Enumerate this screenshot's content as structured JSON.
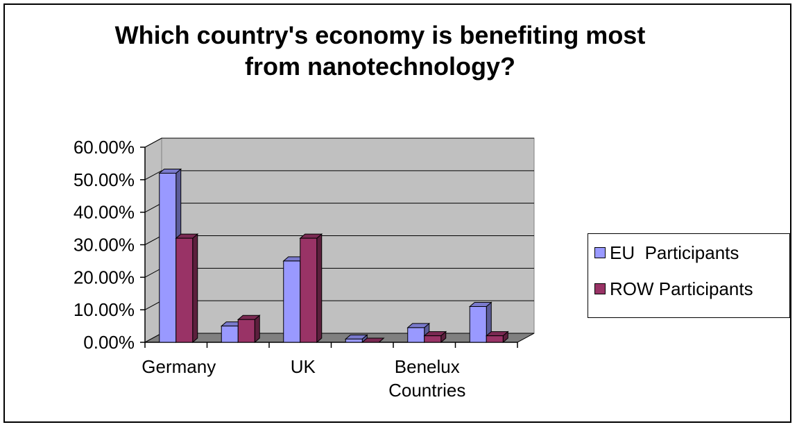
{
  "chart_data": {
    "type": "bar",
    "title": "Which country's economy is benefiting most from nanotechnology?",
    "title_lines": [
      "Which country's economy is benefiting most",
      "from nanotechnology?"
    ],
    "categories": [
      "Germany",
      "",
      "UK",
      "",
      "Benelux Countries",
      ""
    ],
    "category_label_lines": [
      [
        "Germany"
      ],
      [],
      [
        "UK"
      ],
      [],
      [
        "Benelux",
        "Countries"
      ],
      []
    ],
    "series": [
      {
        "name": "EU  Participants",
        "values": [
          0.52,
          0.05,
          0.25,
          0.01,
          0.045,
          0.11
        ],
        "color": "#9999ff"
      },
      {
        "name": "ROW Participants",
        "values": [
          0.32,
          0.07,
          0.32,
          0.0,
          0.02,
          0.02
        ],
        "color": "#993366"
      }
    ],
    "y_ticks": [
      "0.00%",
      "10.00%",
      "20.00%",
      "30.00%",
      "40.00%",
      "50.00%",
      "60.00%"
    ],
    "ylim": [
      0,
      0.6
    ],
    "grid": true,
    "legend_position": "right",
    "plot_background": "#c0c0c0",
    "floor_color": "#808080"
  }
}
